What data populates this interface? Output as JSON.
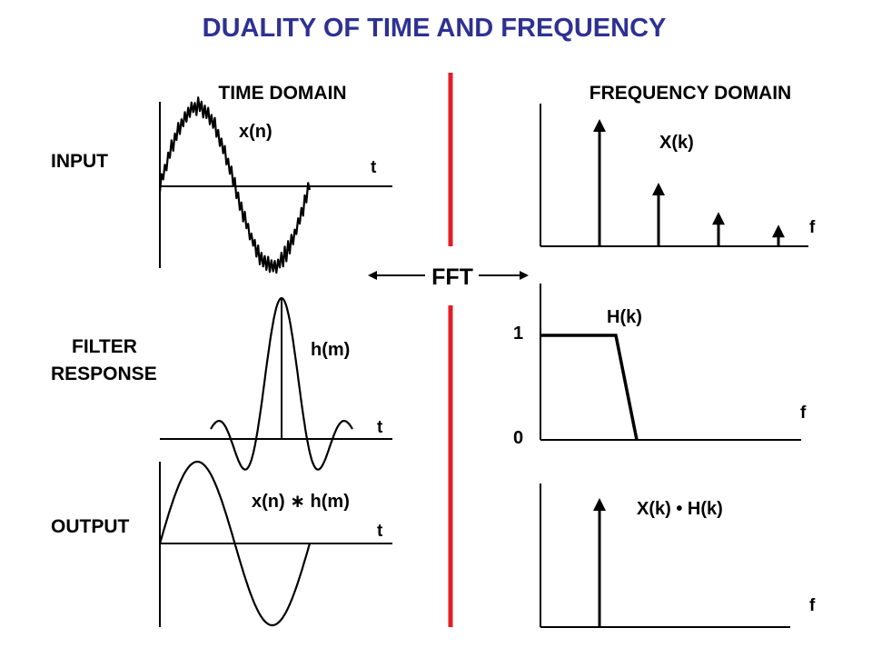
{
  "title": "DUALITY OF TIME AND FREQUENCY",
  "headers": {
    "time_domain": "TIME DOMAIN",
    "frequency_domain": "FREQUENCY DOMAIN"
  },
  "rows": {
    "input": "INPUT",
    "filter_line1": "FILTER",
    "filter_line2": "RESPONSE",
    "output": "OUTPUT"
  },
  "transform": {
    "label": "FFT"
  },
  "time_plots": {
    "input_signal": "x(n)",
    "impulse_response": "h(m)",
    "output_signal": "x(n) ∗ h(m)",
    "axis_t": "t"
  },
  "freq_plots": {
    "input_spectrum": "X(k)",
    "filter_spectrum": "H(k)",
    "output_spectrum": "X(k) • H(k)",
    "axis_f": "f",
    "tick_1": "1",
    "tick_0": "0"
  },
  "input_spectrum_relative_amplitudes": [
    1.0,
    0.5,
    0.27,
    0.17
  ],
  "output_spectrum_relative_amplitudes": [
    1.0
  ],
  "colors": {
    "title": "#2e3192",
    "divider": "#e31e24",
    "ink": "#000000"
  }
}
